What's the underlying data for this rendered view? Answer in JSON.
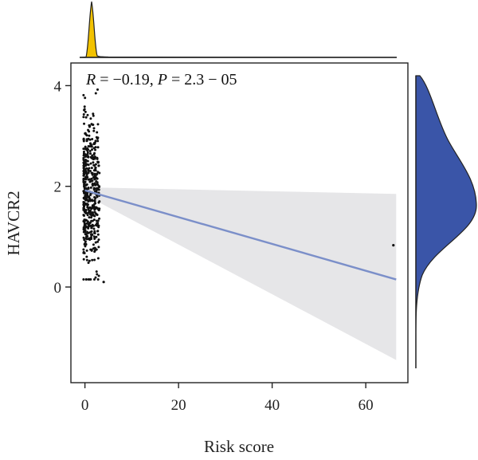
{
  "chart_data": {
    "type": "scatter",
    "xlabel": "Risk score",
    "ylabel": "HAVCR2",
    "annotation": {
      "r_symbol": "R",
      "r_text": " = −0.19, ",
      "p_symbol": "P",
      "p_text": " = 2.3 − 05"
    },
    "xlim": [
      -3,
      69
    ],
    "ylim": [
      -1.9,
      4.45
    ],
    "x_ticks": [
      0,
      20,
      40,
      60
    ],
    "x_tick_labels": [
      "0",
      "20",
      "40",
      "60"
    ],
    "y_ticks": [
      0,
      2,
      4
    ],
    "y_tick_labels": [
      "0",
      "2",
      "4"
    ],
    "regression": {
      "x": [
        0,
        66.5
      ],
      "y": [
        1.92,
        0.15
      ],
      "ci_lower": [
        1.83,
        -1.45
      ],
      "ci_upper": [
        1.98,
        1.85
      ]
    },
    "outliers": {
      "x": [
        65.9,
        4.0
      ],
      "y": [
        0.83,
        0.1
      ]
    },
    "cluster": {
      "count": 520,
      "x_range": [
        -0.3,
        3.1
      ],
      "y_mean": 1.85,
      "y_sd": 0.72,
      "y_range": [
        0.15,
        4.05
      ]
    },
    "top_density": "Risk score distribution",
    "right_density": "HAVCR2 distribution",
    "colors": {
      "points": "#111111",
      "regression_line": "#7b8fc9",
      "ci_band": "#e6e6e8",
      "top_density_fill": "#f2c200",
      "right_density_fill": "#3a55a8",
      "axis": "#222222"
    }
  }
}
